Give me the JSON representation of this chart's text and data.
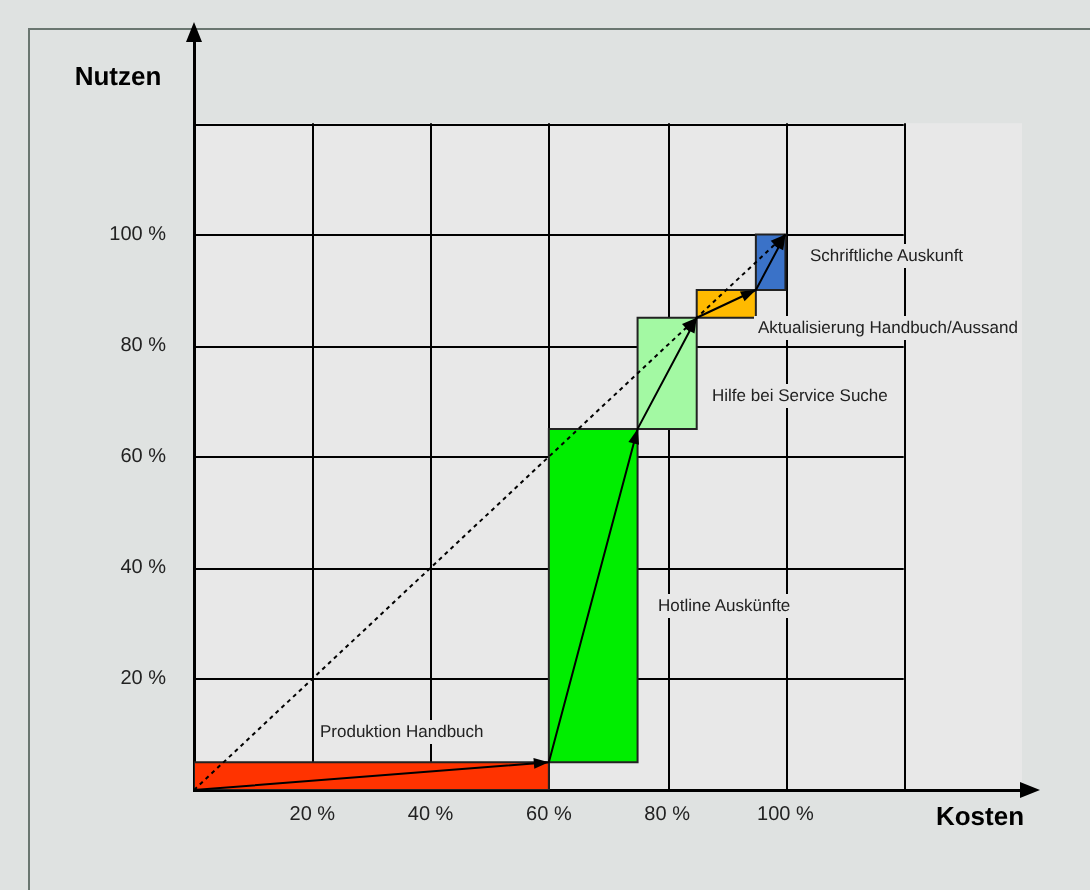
{
  "chart_data": {
    "type": "area",
    "xlabel": "Kosten",
    "ylabel": "Nutzen",
    "xlim": [
      0,
      140
    ],
    "ylim": [
      0,
      135
    ],
    "xticks": [
      {
        "value": 0,
        "label": null
      },
      {
        "value": 20,
        "label": "20 %"
      },
      {
        "value": 40,
        "label": "40 %"
      },
      {
        "value": 60,
        "label": "60 %"
      },
      {
        "value": 80,
        "label": "80 %"
      },
      {
        "value": 100,
        "label": "100 %"
      },
      {
        "value": 120,
        "label": null
      }
    ],
    "yticks": [
      {
        "value": 0,
        "label": null
      },
      {
        "value": 20,
        "label": "20 %"
      },
      {
        "value": 40,
        "label": "40 %"
      },
      {
        "value": 60,
        "label": "60 %"
      },
      {
        "value": 80,
        "label": "80 %"
      },
      {
        "value": 100,
        "label": "100 %"
      },
      {
        "value": 120,
        "label": null
      }
    ],
    "grid": true,
    "legend": false,
    "marker": "none",
    "series": [
      {
        "type": "area",
        "color": "#ff3300",
        "x": [
          0,
          0,
          60,
          60,
          0
        ],
        "values": [
          0,
          5,
          5,
          0,
          0
        ]
      },
      {
        "type": "area",
        "color": "#00ee00",
        "x": [
          60,
          60,
          75,
          75,
          60
        ],
        "values": [
          5,
          65,
          65,
          5,
          5
        ]
      },
      {
        "type": "area",
        "color": "#a3f9a3",
        "x": [
          75,
          75,
          85,
          85,
          75
        ],
        "values": [
          65,
          85,
          85,
          65,
          65
        ]
      },
      {
        "type": "area",
        "color": "#ffba00",
        "x": [
          85,
          85,
          95,
          95,
          85
        ],
        "values": [
          85,
          90,
          90,
          85,
          85
        ]
      },
      {
        "type": "area",
        "color": "#3a72c8",
        "x": [
          95,
          95,
          100,
          100,
          95
        ],
        "values": [
          90,
          100,
          100,
          90,
          90
        ]
      },
      {
        "type": "line",
        "color": "#000000",
        "line_style": "solid",
        "x": [
          0,
          60,
          75,
          85,
          95,
          100
        ],
        "values": [
          0,
          5,
          65,
          85,
          90,
          100
        ]
      },
      {
        "type": "line",
        "color": "#000000",
        "line_style": "dotted",
        "x": [
          0,
          85,
          100
        ],
        "values": [
          0,
          85,
          100
        ]
      }
    ],
    "annotations": [
      "Produktion Handbuch",
      "Hotline Auskünfte",
      "Hilfe bei Service Suche",
      "Aktualisierung Handbuch/Aussand",
      "Schriftliche Auskunft"
    ]
  }
}
